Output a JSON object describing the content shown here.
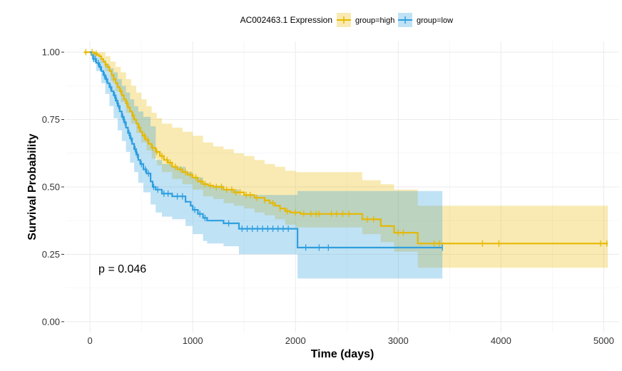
{
  "chart_data": {
    "type": "line",
    "subtype": "kaplan-meier survival curve",
    "legend": {
      "title": "AC002463.1 Expression",
      "placement": "top"
    },
    "xlabel": "Time (days)",
    "ylabel": "Survival Probability",
    "xlim": [
      -230,
      5150
    ],
    "ylim": [
      -0.04,
      1.04
    ],
    "x_ticks": [
      0,
      1000,
      2000,
      3000,
      4000,
      5000
    ],
    "x_tick_labels": [
      "0",
      "1000",
      "2000",
      "3000",
      "4000",
      "5000"
    ],
    "y_ticks": [
      0,
      0.25,
      0.5,
      0.75,
      1.0
    ],
    "y_tick_labels": [
      "0.00",
      "0.25",
      "0.50",
      "0.75",
      "1.00"
    ],
    "grid": true,
    "annotation": "p = 0.046",
    "series": [
      {
        "name": "group=high",
        "color": "#E7B800",
        "steps": [
          [
            -60,
            1.0
          ],
          [
            40,
            0.995
          ],
          [
            70,
            0.99
          ],
          [
            90,
            0.985
          ],
          [
            110,
            0.975
          ],
          [
            130,
            0.965
          ],
          [
            150,
            0.955
          ],
          [
            170,
            0.945
          ],
          [
            190,
            0.93
          ],
          [
            210,
            0.915
          ],
          [
            230,
            0.9
          ],
          [
            250,
            0.885
          ],
          [
            270,
            0.87
          ],
          [
            290,
            0.855
          ],
          [
            310,
            0.84
          ],
          [
            330,
            0.825
          ],
          [
            350,
            0.81
          ],
          [
            370,
            0.795
          ],
          [
            390,
            0.78
          ],
          [
            410,
            0.765
          ],
          [
            430,
            0.75
          ],
          [
            450,
            0.735
          ],
          [
            470,
            0.72
          ],
          [
            490,
            0.705
          ],
          [
            510,
            0.69
          ],
          [
            540,
            0.675
          ],
          [
            570,
            0.66
          ],
          [
            600,
            0.645
          ],
          [
            640,
            0.63
          ],
          [
            680,
            0.615
          ],
          [
            720,
            0.6
          ],
          [
            760,
            0.59
          ],
          [
            800,
            0.575
          ],
          [
            850,
            0.565
          ],
          [
            900,
            0.555
          ],
          [
            950,
            0.545
          ],
          [
            1000,
            0.535
          ],
          [
            1050,
            0.52
          ],
          [
            1100,
            0.51
          ],
          [
            1150,
            0.505
          ],
          [
            1200,
            0.5
          ],
          [
            1300,
            0.49
          ],
          [
            1400,
            0.48
          ],
          [
            1500,
            0.47
          ],
          [
            1600,
            0.46
          ],
          [
            1700,
            0.45
          ],
          [
            1750,
            0.44
          ],
          [
            1800,
            0.43
          ],
          [
            1850,
            0.42
          ],
          [
            1900,
            0.41
          ],
          [
            1950,
            0.405
          ],
          [
            2050,
            0.4
          ],
          [
            2650,
            0.38
          ],
          [
            2830,
            0.355
          ],
          [
            2960,
            0.33
          ],
          [
            3190,
            0.29
          ],
          [
            5040,
            0.29
          ]
        ],
        "ci_lower": [
          [
            -60,
            1.0
          ],
          [
            40,
            0.985
          ],
          [
            100,
            0.96
          ],
          [
            150,
            0.93
          ],
          [
            200,
            0.895
          ],
          [
            250,
            0.855
          ],
          [
            300,
            0.815
          ],
          [
            350,
            0.775
          ],
          [
            400,
            0.735
          ],
          [
            450,
            0.7
          ],
          [
            500,
            0.665
          ],
          [
            550,
            0.635
          ],
          [
            600,
            0.605
          ],
          [
            650,
            0.58
          ],
          [
            700,
            0.555
          ],
          [
            800,
            0.53
          ],
          [
            900,
            0.51
          ],
          [
            1000,
            0.49
          ],
          [
            1100,
            0.465
          ],
          [
            1200,
            0.455
          ],
          [
            1300,
            0.44
          ],
          [
            1400,
            0.43
          ],
          [
            1500,
            0.42
          ],
          [
            1600,
            0.405
          ],
          [
            1700,
            0.395
          ],
          [
            1800,
            0.38
          ],
          [
            1900,
            0.36
          ],
          [
            2000,
            0.35
          ],
          [
            2650,
            0.325
          ],
          [
            2830,
            0.295
          ],
          [
            2960,
            0.26
          ],
          [
            3190,
            0.2
          ],
          [
            5040,
            0.2
          ]
        ],
        "ci_upper": [
          [
            -60,
            1.0
          ],
          [
            40,
            1.0
          ],
          [
            150,
            0.985
          ],
          [
            200,
            0.965
          ],
          [
            250,
            0.945
          ],
          [
            300,
            0.925
          ],
          [
            350,
            0.9
          ],
          [
            400,
            0.875
          ],
          [
            450,
            0.85
          ],
          [
            500,
            0.825
          ],
          [
            550,
            0.8
          ],
          [
            600,
            0.775
          ],
          [
            650,
            0.755
          ],
          [
            700,
            0.735
          ],
          [
            800,
            0.72
          ],
          [
            900,
            0.705
          ],
          [
            1000,
            0.69
          ],
          [
            1100,
            0.665
          ],
          [
            1200,
            0.65
          ],
          [
            1300,
            0.64
          ],
          [
            1400,
            0.625
          ],
          [
            1500,
            0.615
          ],
          [
            1600,
            0.6
          ],
          [
            1700,
            0.585
          ],
          [
            1800,
            0.575
          ],
          [
            1900,
            0.56
          ],
          [
            2000,
            0.555
          ],
          [
            2650,
            0.525
          ],
          [
            2830,
            0.51
          ],
          [
            2960,
            0.49
          ],
          [
            3190,
            0.43
          ],
          [
            5040,
            0.43
          ]
        ],
        "censor_times": [
          -40,
          20,
          60,
          150,
          230,
          300,
          360,
          420,
          480,
          530,
          560,
          610,
          650,
          700,
          750,
          780,
          830,
          880,
          930,
          980,
          1030,
          1080,
          1120,
          1170,
          1230,
          1280,
          1330,
          1380,
          1420,
          1460,
          1520,
          1560,
          1620,
          1700,
          1780,
          1850,
          1920,
          2000,
          2080,
          2150,
          2200,
          2230,
          2350,
          2400,
          2460,
          2520,
          2700,
          2760,
          3000,
          3050,
          3350,
          3400,
          3820,
          3980,
          4970,
          5030
        ]
      },
      {
        "name": "group=low",
        "color": "#2E9FDF",
        "steps": [
          [
            0,
            1.0
          ],
          [
            15,
            0.99
          ],
          [
            30,
            0.975
          ],
          [
            60,
            0.96
          ],
          [
            90,
            0.945
          ],
          [
            110,
            0.93
          ],
          [
            130,
            0.915
          ],
          [
            150,
            0.9
          ],
          [
            170,
            0.885
          ],
          [
            190,
            0.87
          ],
          [
            210,
            0.855
          ],
          [
            230,
            0.84
          ],
          [
            250,
            0.82
          ],
          [
            270,
            0.8
          ],
          [
            290,
            0.78
          ],
          [
            310,
            0.76
          ],
          [
            330,
            0.74
          ],
          [
            350,
            0.72
          ],
          [
            370,
            0.7
          ],
          [
            390,
            0.68
          ],
          [
            410,
            0.66
          ],
          [
            430,
            0.64
          ],
          [
            450,
            0.62
          ],
          [
            470,
            0.6
          ],
          [
            490,
            0.585
          ],
          [
            520,
            0.565
          ],
          [
            550,
            0.55
          ],
          [
            590,
            0.52
          ],
          [
            610,
            0.5
          ],
          [
            640,
            0.49
          ],
          [
            700,
            0.475
          ],
          [
            800,
            0.465
          ],
          [
            930,
            0.445
          ],
          [
            980,
            0.43
          ],
          [
            1000,
            0.415
          ],
          [
            1050,
            0.4
          ],
          [
            1100,
            0.385
          ],
          [
            1140,
            0.375
          ],
          [
            1300,
            0.365
          ],
          [
            1450,
            0.345
          ],
          [
            2020,
            0.275
          ],
          [
            3430,
            0.275
          ]
        ],
        "ci_lower": [
          [
            0,
            1.0
          ],
          [
            15,
            0.975
          ],
          [
            60,
            0.93
          ],
          [
            110,
            0.885
          ],
          [
            150,
            0.845
          ],
          [
            190,
            0.8
          ],
          [
            230,
            0.755
          ],
          [
            270,
            0.71
          ],
          [
            310,
            0.67
          ],
          [
            350,
            0.63
          ],
          [
            390,
            0.59
          ],
          [
            430,
            0.555
          ],
          [
            470,
            0.515
          ],
          [
            520,
            0.48
          ],
          [
            590,
            0.435
          ],
          [
            640,
            0.405
          ],
          [
            700,
            0.39
          ],
          [
            800,
            0.38
          ],
          [
            930,
            0.355
          ],
          [
            1000,
            0.325
          ],
          [
            1100,
            0.3
          ],
          [
            1140,
            0.29
          ],
          [
            1300,
            0.28
          ],
          [
            1450,
            0.25
          ],
          [
            2020,
            0.16
          ],
          [
            3430,
            0.16
          ]
        ],
        "ci_upper": [
          [
            0,
            1.0
          ],
          [
            15,
            1.0
          ],
          [
            60,
            0.985
          ],
          [
            110,
            0.97
          ],
          [
            150,
            0.955
          ],
          [
            190,
            0.94
          ],
          [
            230,
            0.925
          ],
          [
            270,
            0.9
          ],
          [
            310,
            0.875
          ],
          [
            350,
            0.85
          ],
          [
            390,
            0.825
          ],
          [
            430,
            0.8
          ],
          [
            470,
            0.78
          ],
          [
            520,
            0.76
          ],
          [
            590,
            0.725
          ],
          [
            640,
            0.6
          ],
          [
            700,
            0.585
          ],
          [
            800,
            0.575
          ],
          [
            930,
            0.555
          ],
          [
            1000,
            0.535
          ],
          [
            1100,
            0.515
          ],
          [
            1140,
            0.505
          ],
          [
            1300,
            0.49
          ],
          [
            1450,
            0.47
          ],
          [
            2020,
            0.485
          ],
          [
            3430,
            0.485
          ]
        ],
        "censor_times": [
          35,
          50,
          80,
          100,
          140,
          160,
          200,
          240,
          260,
          280,
          320,
          340,
          380,
          400,
          440,
          460,
          500,
          540,
          570,
          620,
          660,
          720,
          760,
          850,
          900,
          1020,
          1070,
          1120,
          1350,
          1480,
          1530,
          1580,
          1630,
          1680,
          1730,
          1780,
          1830,
          1880,
          1930,
          2100,
          2230,
          2320,
          3430
        ]
      }
    ]
  }
}
